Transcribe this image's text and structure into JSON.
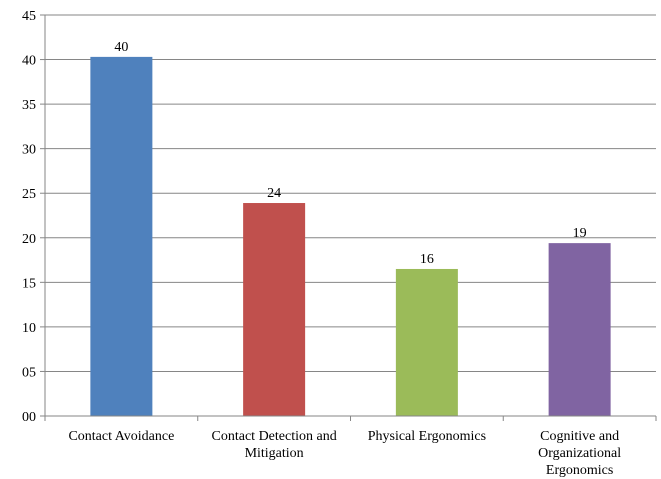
{
  "chart_data": {
    "type": "bar",
    "categories": [
      [
        "Contact Avoidance"
      ],
      [
        "Contact Detection and",
        "Mitigation"
      ],
      [
        "Physical Ergonomics"
      ],
      [
        "Cognitive and",
        "Organizational",
        "Ergonomics"
      ]
    ],
    "values": [
      40.3,
      23.9,
      16.5,
      19.4
    ],
    "data_labels": [
      "40",
      "24",
      "16",
      "19"
    ],
    "colors": [
      "#4f81bd",
      "#c0504d",
      "#9bbb59",
      "#8064a2"
    ],
    "y_ticks": [
      "00",
      "05",
      "10",
      "15",
      "20",
      "25",
      "30",
      "35",
      "40",
      "45"
    ],
    "ylim": [
      0,
      45
    ],
    "grid": true,
    "legend": "none"
  }
}
